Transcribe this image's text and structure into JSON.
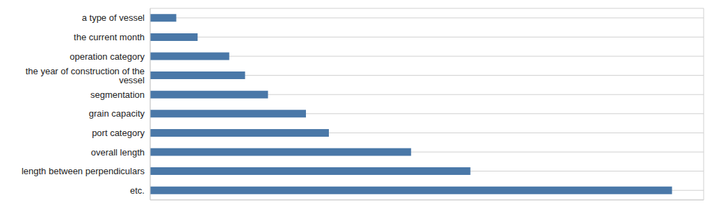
{
  "chart_data": {
    "type": "bar",
    "orientation": "horizontal",
    "categories": [
      "a type of vessel",
      "the current month",
      "operation category",
      "the year of construction of the vessel",
      "segmentation",
      "grain capacity",
      "port category",
      "overall length",
      "length between perpendiculars",
      "etc."
    ],
    "values": [
      0.33,
      0.6,
      1.0,
      1.2,
      1.49,
      1.97,
      2.26,
      3.3,
      4.05,
      6.6
    ],
    "color": "#4a78a8",
    "xlim": [
      0,
      7
    ],
    "xticks": [
      0,
      1,
      2,
      3,
      4,
      5,
      6,
      7
    ],
    "grid": true,
    "tick_labels": "y"
  }
}
